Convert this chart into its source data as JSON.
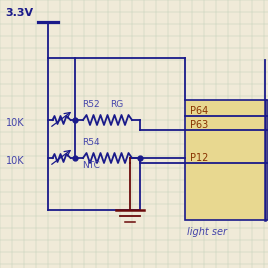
{
  "bg_color": "#f0ead8",
  "grid_color": "#c0d0b8",
  "wire_color": "#1a1a8a",
  "label_color": "#4444aa",
  "pin_label_color": "#883300",
  "ground_color": "#6a0a0a",
  "connector_fill": "#e8d890",
  "connector_border": "#1a1a8a",
  "vcc_label": "3.3V",
  "r1_label": "R52",
  "r1_sublabel": "RG",
  "r2_label": "R54",
  "r2_sublabel": "NTC",
  "pot1_label": "10K",
  "pot2_label": "10K",
  "p64": "P64",
  "p63": "P63",
  "p12": "P12",
  "connector_label": "light ser"
}
